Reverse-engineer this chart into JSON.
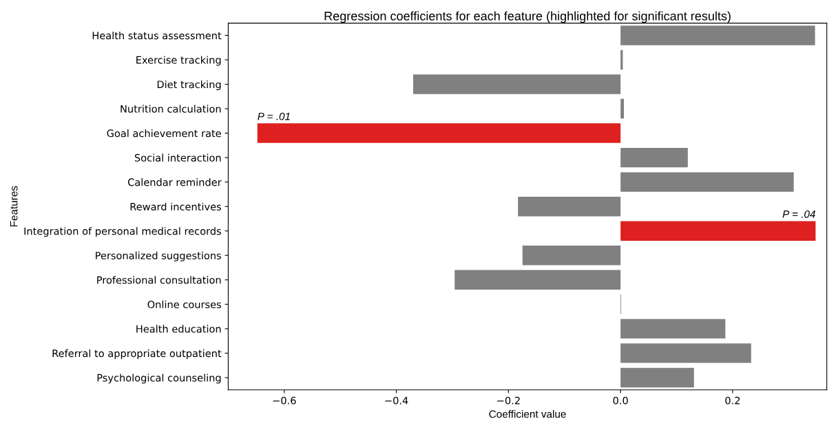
{
  "chart_data": {
    "type": "bar",
    "orientation": "horizontal",
    "title": "Regression coefficients for each feature (highlighted for significant results)",
    "xlabel": "Coefficient value",
    "ylabel": "Features",
    "categories": [
      "Health status assessment",
      "Exercise tracking",
      "Diet tracking",
      "Nutrition calculation",
      "Goal achievement rate",
      "Social interaction",
      "Calendar reminder",
      "Reward incentives",
      "Integration of personal medical records",
      "Personalized suggestions",
      "Professional consultation",
      "Online courses",
      "Health education",
      "Referral to appropriate outpatient",
      "Psychological counseling"
    ],
    "values": [
      0.347,
      0.004,
      -0.37,
      0.006,
      -0.648,
      0.12,
      0.309,
      -0.183,
      0.348,
      -0.175,
      -0.296,
      0.001,
      0.187,
      0.233,
      0.131
    ],
    "colors": [
      "#808080",
      "#808080",
      "#808080",
      "#808080",
      "#de2020",
      "#808080",
      "#808080",
      "#808080",
      "#de2020",
      "#808080",
      "#808080",
      "#808080",
      "#808080",
      "#808080",
      "#808080"
    ],
    "xlim": [
      -0.7,
      0.368
    ],
    "xticks": [
      {
        "value": -0.6,
        "label": "−0.6"
      },
      {
        "value": -0.4,
        "label": "−0.4"
      },
      {
        "value": -0.2,
        "label": "−0.2"
      },
      {
        "value": 0.0,
        "label": "0.0"
      },
      {
        "value": 0.2,
        "label": "0.2"
      }
    ],
    "annotations": [
      {
        "text": "P = .01",
        "x": -0.648,
        "y": "Goal achievement rate"
      },
      {
        "text": "P = .04",
        "x": 0.348,
        "y": "Integration of personal medical records"
      }
    ],
    "grid": false,
    "legend": false
  }
}
